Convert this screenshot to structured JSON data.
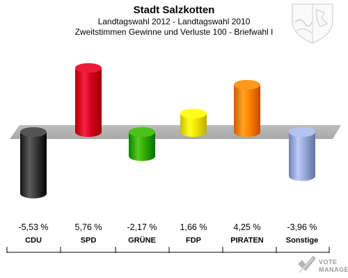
{
  "chart_data": {
    "type": "bar",
    "title": "Stadt Salzkotten",
    "subtitle_lines": [
      "Landtagswahl 2012 - Landtagswahl 2010",
      "Zweitstimmen Gewinne und Verluste 100 - Briefwahl I"
    ],
    "categories": [
      "CDU",
      "SPD",
      "GRÜNE",
      "FDP",
      "PIRATEN",
      "Sonstige"
    ],
    "values": [
      -5.53,
      5.76,
      -2.17,
      1.66,
      4.25,
      -3.96
    ],
    "value_labels": [
      "-5,53 %",
      "5,76 %",
      "-2,17 %",
      "1,66 %",
      "4,25 %",
      "-3,96 %"
    ],
    "colors": [
      "#3a3a3a",
      "#d4001f",
      "#33aa00",
      "#f2e400",
      "#ff8000",
      "#9aaad8"
    ],
    "ylim": [
      -6,
      6
    ]
  },
  "branding": {
    "line1": "VOTE",
    "line2": "MANAGER"
  },
  "icons": {
    "crest": "coat-of-arms-icon",
    "logo": "vote-manager-check-icon"
  }
}
